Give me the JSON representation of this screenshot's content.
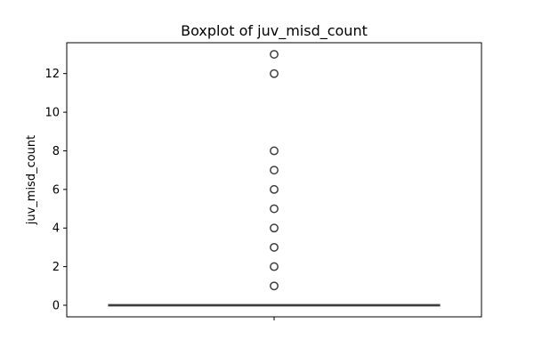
{
  "chart_data": {
    "type": "box",
    "title": "Boxplot of juv_misd_count",
    "xlabel": "",
    "ylabel": "juv_misd_count",
    "ylim": [
      -0.6,
      13.6
    ],
    "yticks": [
      0,
      2,
      4,
      6,
      8,
      10,
      12
    ],
    "x_categories": [
      ""
    ],
    "grid": false,
    "box": {
      "min": 0,
      "q1": 0,
      "median": 0,
      "q3": 0,
      "max": 0,
      "whisker_low": 0,
      "whisker_high": 0
    },
    "outliers": [
      1,
      2,
      3,
      4,
      5,
      6,
      7,
      8,
      12,
      13
    ],
    "colors": {
      "box_fill": "#3a75af",
      "line": "#3f3f3f",
      "frame": "#000000"
    }
  }
}
